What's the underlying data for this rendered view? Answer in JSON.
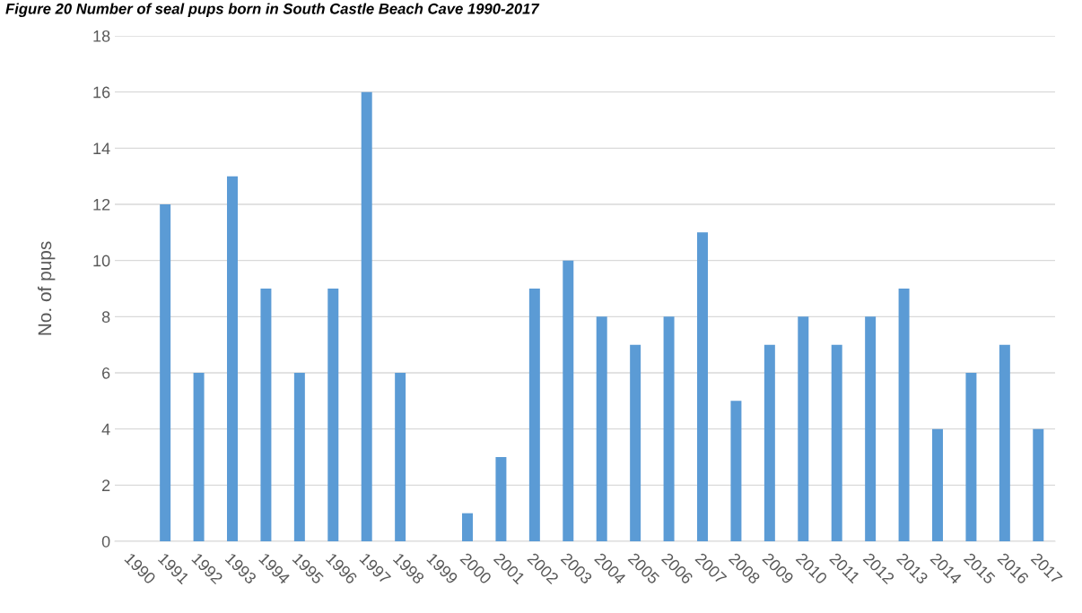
{
  "chart_data": {
    "type": "bar",
    "title": "Figure 20 Number of seal pups born in South Castle Beach Cave 1990-2017",
    "ylabel": "No. of pups",
    "categories": [
      "1990",
      "1991",
      "1992",
      "1993",
      "1994",
      "1995",
      "1996",
      "1997",
      "1998",
      "1999",
      "2000",
      "2001",
      "2002",
      "2003",
      "2004",
      "2005",
      "2006",
      "2007",
      "2008",
      "2009",
      "2010",
      "2011",
      "2012",
      "2013",
      "2014",
      "2015",
      "2016",
      "2017"
    ],
    "values": [
      0,
      12,
      6,
      13,
      9,
      6,
      9,
      16,
      6,
      0,
      1,
      3,
      9,
      10,
      8,
      7,
      8,
      11,
      5,
      7,
      8,
      7,
      8,
      9,
      4,
      6,
      7,
      4
    ],
    "color": "#5b9bd5",
    "ylim": [
      0,
      18
    ],
    "yticks": [
      0,
      2,
      4,
      6,
      8,
      10,
      12,
      14,
      16,
      18
    ],
    "grid": "y",
    "legend": false
  }
}
